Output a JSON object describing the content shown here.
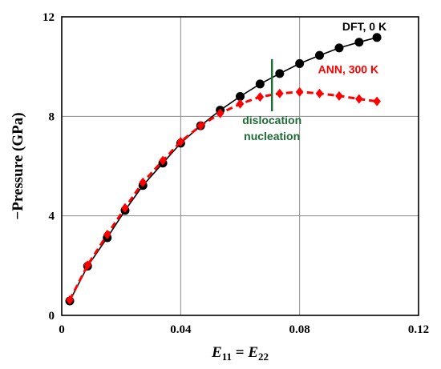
{
  "chart_data": {
    "type": "line",
    "title": "",
    "xlabel": {
      "main": "E",
      "sub1": "11",
      "eq": " = ",
      "main2": "E",
      "sub2": "22"
    },
    "ylabel": "−Pressure (GPa)",
    "xlim": [
      0,
      0.12
    ],
    "ylim": [
      0,
      12
    ],
    "x_ticks": [
      "0",
      "0.04",
      "0.08",
      "0.12"
    ],
    "y_ticks": [
      "0",
      "4",
      "8",
      "12"
    ],
    "grid": true,
    "series": [
      {
        "name": "DFT, 0 K",
        "color": "#000000",
        "marker": "circle",
        "line": "solid",
        "x": [
          0.0027,
          0.0087,
          0.0153,
          0.0213,
          0.0273,
          0.034,
          0.04,
          0.0467,
          0.0533,
          0.06,
          0.0667,
          0.0733,
          0.08,
          0.0867,
          0.0933,
          0.1,
          0.106
        ],
        "y": [
          0.58,
          1.98,
          3.12,
          4.22,
          5.22,
          6.12,
          6.92,
          7.62,
          8.25,
          8.8,
          9.3,
          9.72,
          10.12,
          10.45,
          10.75,
          10.98,
          11.17
        ]
      },
      {
        "name": "ANN, 300 K",
        "color": "#ff0000",
        "marker": "diamond",
        "line": "dashed",
        "x": [
          0.0027,
          0.0087,
          0.0153,
          0.0213,
          0.0273,
          0.034,
          0.04,
          0.0467,
          0.0533,
          0.06,
          0.0667,
          0.0733,
          0.08,
          0.0867,
          0.0933,
          0.1,
          0.106
        ],
        "y": [
          0.62,
          2.02,
          3.25,
          4.32,
          5.35,
          6.22,
          6.98,
          7.62,
          8.12,
          8.5,
          8.78,
          8.92,
          8.98,
          8.92,
          8.82,
          8.7,
          8.6
        ]
      }
    ],
    "annotation": {
      "lines": [
        "dislocation",
        "nucleation"
      ],
      "x": 0.0707,
      "y_range": [
        8.2,
        10.3
      ],
      "color": "#1d6b35"
    },
    "legend_placement": "inline-top-right"
  }
}
